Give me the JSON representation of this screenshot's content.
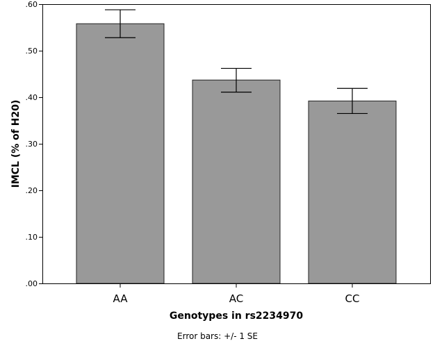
{
  "chart_data": {
    "type": "bar",
    "categories": [
      "AA",
      "AC",
      "CC"
    ],
    "values": [
      0.558,
      0.437,
      0.392
    ],
    "error_bars": {
      "type": "+/- 1 SE",
      "lower": [
        0.528,
        0.411,
        0.365
      ],
      "upper": [
        0.588,
        0.462,
        0.419
      ]
    },
    "xlabel": "Genotypes in rs2234970",
    "ylabel": "IMCL (% of H20)",
    "ylim": [
      0,
      0.6
    ],
    "yticks": [
      ".00",
      ".10",
      ".20",
      ".30",
      ".40",
      ".50",
      ".60"
    ],
    "ytick_values": [
      0,
      0.1,
      0.2,
      0.3,
      0.4,
      0.5,
      0.6
    ],
    "footnote": "Error bars: +/- 1 SE",
    "grid": false,
    "legend": "none",
    "colors": {
      "bar_fill": "#999999",
      "bar_stroke": "#222222",
      "axis": "#000000",
      "frame": "#000000",
      "error_bar": "#000000"
    }
  }
}
